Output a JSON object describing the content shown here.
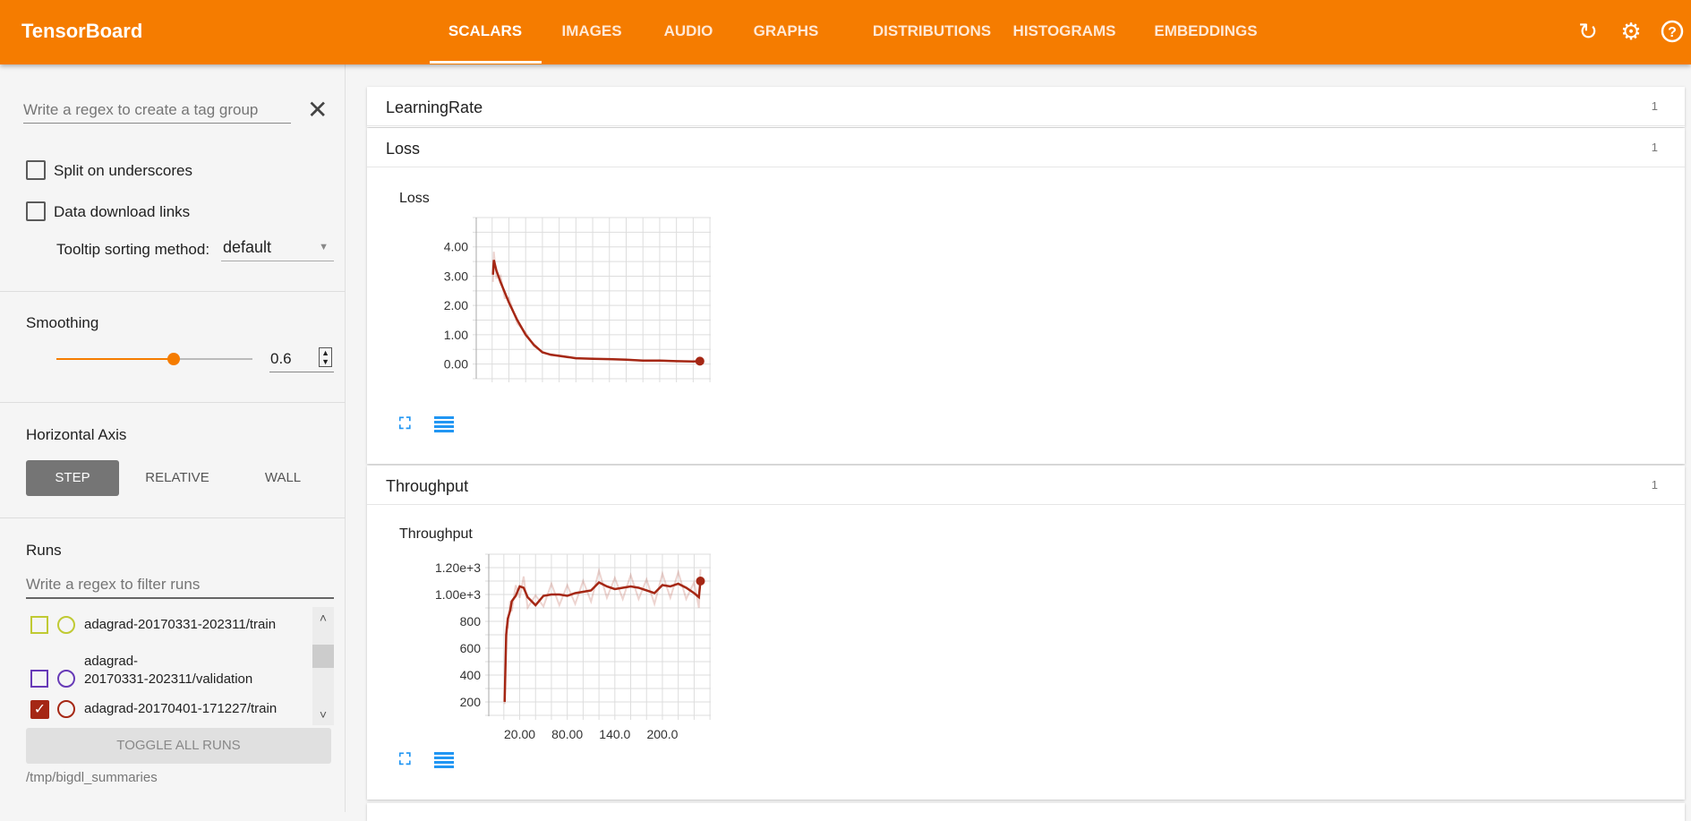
{
  "header": {
    "title": "TensorBoard",
    "tabs": [
      "SCALARS",
      "IMAGES",
      "AUDIO",
      "GRAPHS",
      "DISTRIBUTIONS",
      "HISTOGRAMS",
      "EMBEDDINGS"
    ],
    "active_tab": "SCALARS",
    "icons": [
      "refresh-icon",
      "settings-icon",
      "help-icon"
    ]
  },
  "sidebar": {
    "tag_regex_placeholder": "Write a regex to create a tag group",
    "split_label": "Split on underscores",
    "split_checked": false,
    "download_label": "Data download links",
    "download_checked": false,
    "tooltip_label": "Tooltip sorting method:",
    "tooltip_value": "default",
    "smoothing_label": "Smoothing",
    "smoothing_value": "0.6",
    "smoothing_fraction": 0.6,
    "axis_label": "Horizontal Axis",
    "axis_options": [
      "STEP",
      "RELATIVE",
      "WALL"
    ],
    "axis_selected": "STEP",
    "runs_label": "Runs",
    "runs_filter_placeholder": "Write a regex to filter runs",
    "runs": [
      {
        "name": "adagrad-20170331-202311/train",
        "color": "#c0ca33",
        "checked": false
      },
      {
        "name": "adagrad-20170331-202311/validation",
        "line1": "adagrad-",
        "line2": "20170331-202311/validation",
        "color": "#673ab7",
        "checked": false
      },
      {
        "name": "adagrad-20170401-171227/train",
        "color": "#a52714",
        "checked": true
      }
    ],
    "toggle_label": "TOGGLE ALL RUNS",
    "logdir": "/tmp/bigdl_summaries"
  },
  "cards": [
    {
      "title": "LearningRate",
      "count": "1"
    },
    {
      "title": "Loss",
      "count": "1"
    },
    {
      "title": "Throughput",
      "count": "1"
    }
  ],
  "chart_data": [
    {
      "type": "line",
      "title": "Loss",
      "xlim": [
        -19,
        261
      ],
      "ylim": [
        -0.5,
        5.0
      ],
      "yticks": [
        "4.00",
        "3.00",
        "2.00",
        "1.00",
        "0.00"
      ],
      "ytick_values": [
        4,
        3,
        2,
        1,
        0
      ],
      "xticks": [],
      "xtick_values": [],
      "grid": true,
      "color": "#a52714",
      "x": [
        1,
        2,
        5,
        10,
        15,
        20,
        30,
        40,
        50,
        60,
        70,
        80,
        100,
        120,
        140,
        160,
        180,
        200,
        220,
        240,
        248
      ],
      "y": [
        3.05,
        3.55,
        3.2,
        2.8,
        2.45,
        2.1,
        1.5,
        1.0,
        0.65,
        0.4,
        0.32,
        0.28,
        0.2,
        0.18,
        0.17,
        0.15,
        0.12,
        0.12,
        0.1,
        0.09,
        0.1
      ]
    },
    {
      "type": "line",
      "title": "Throughput",
      "xlim": [
        -19,
        261
      ],
      "ylim": [
        93,
        1300
      ],
      "yticks": [
        "1.20e+3",
        "1.00e+3",
        "800",
        "600",
        "400",
        "200"
      ],
      "ytick_values": [
        1200,
        1000,
        800,
        600,
        400,
        200
      ],
      "xticks": [
        "20.00",
        "80.00",
        "140.0",
        "200.0"
      ],
      "xtick_values": [
        20,
        80,
        140,
        200
      ],
      "grid": true,
      "color": "#a52714",
      "x": [
        1,
        3,
        5,
        8,
        10,
        15,
        20,
        25,
        30,
        40,
        50,
        60,
        70,
        80,
        90,
        100,
        110,
        120,
        130,
        140,
        150,
        160,
        170,
        180,
        190,
        200,
        210,
        220,
        230,
        240,
        246,
        248
      ],
      "y": [
        200,
        700,
        820,
        880,
        950,
        990,
        1060,
        1050,
        980,
        920,
        990,
        1000,
        1000,
        990,
        1010,
        1020,
        1030,
        1090,
        1060,
        1040,
        1050,
        1060,
        1050,
        1030,
        1010,
        1070,
        1060,
        1080,
        1050,
        1010,
        980,
        1100
      ]
    }
  ]
}
